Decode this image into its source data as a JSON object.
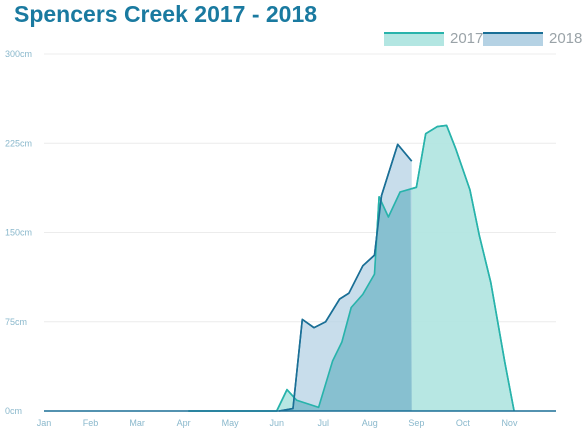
{
  "chart_data": {
    "type": "area",
    "title": "Spencers Creek 2017 - 2018",
    "xlabel": "",
    "ylabel": "",
    "x_ticks": [
      "Jan",
      "Feb",
      "Mar",
      "Apr",
      "May",
      "Jun",
      "Jul",
      "Aug",
      "Sep",
      "Oct",
      "Nov"
    ],
    "y_ticks": [
      "0cm",
      "75cm",
      "150cm",
      "225cm",
      "300cm"
    ],
    "ylim": [
      0,
      300
    ],
    "xlim": [
      1,
      12
    ],
    "grid": true,
    "legend_position": "top-right",
    "series": [
      {
        "name": "2017",
        "line_color": "#28b3ab",
        "fill_color": "#b3e6e2",
        "points": [
          [
            4.1,
            0
          ],
          [
            5.0,
            0
          ],
          [
            5.3,
            0
          ],
          [
            6.0,
            0
          ],
          [
            6.22,
            18
          ],
          [
            6.43,
            9
          ],
          [
            6.67,
            6
          ],
          [
            6.9,
            3
          ],
          [
            7.2,
            42
          ],
          [
            7.4,
            58
          ],
          [
            7.6,
            87
          ],
          [
            7.85,
            98
          ],
          [
            8.1,
            115
          ],
          [
            8.2,
            180
          ],
          [
            8.4,
            163
          ],
          [
            8.65,
            184
          ],
          [
            9.0,
            188
          ],
          [
            9.2,
            233
          ],
          [
            9.45,
            239
          ],
          [
            9.65,
            240
          ],
          [
            9.85,
            220
          ],
          [
            10.15,
            186
          ],
          [
            10.35,
            148
          ],
          [
            10.6,
            108
          ],
          [
            10.9,
            41
          ],
          [
            11.1,
            0
          ]
        ]
      },
      {
        "name": "2018",
        "line_color": "#1a6f96",
        "fill_color": "#b5d2e4",
        "points": [
          [
            6.05,
            0
          ],
          [
            6.35,
            2
          ],
          [
            6.55,
            77
          ],
          [
            6.8,
            70
          ],
          [
            7.05,
            75
          ],
          [
            7.35,
            94
          ],
          [
            7.55,
            99
          ],
          [
            7.85,
            122
          ],
          [
            8.1,
            131
          ],
          [
            8.25,
            181
          ],
          [
            8.6,
            224
          ],
          [
            8.9,
            210
          ]
        ]
      }
    ]
  }
}
